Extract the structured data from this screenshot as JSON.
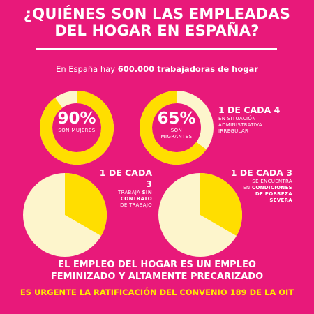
{
  "title": {
    "line1": "¿QUIÉNES SON LAS EMPLEADAS",
    "line2": "DEL HOGAR EN ESPAÑA?"
  },
  "intro": {
    "prefix": "En España hay ",
    "highlight": "600.000 trabajadoras de hogar"
  },
  "stats": [
    {
      "value": "90%",
      "label": "SON MUJERES",
      "fraction": 0.9
    },
    {
      "value": "65%",
      "label_line1": "SON",
      "label_line2": "MIGRANTES",
      "fraction": 0.65
    }
  ],
  "admin": {
    "head": "1 DE CADA 4",
    "line1": "EN SITUACIÓN",
    "line2": "ADMINISTRATIVA",
    "line3": "IRREGULAR",
    "fraction": 0.25
  },
  "contract": {
    "head": "1 DE CADA 3",
    "line1_pre": "TRABAJA ",
    "line1_bold": "SIN",
    "line2_bold": "CONTRATO",
    "line3": "DE TRABAJO",
    "fraction": 0.3333
  },
  "poverty": {
    "head": "1 DE CADA 3",
    "line1": "SE ENCUENTRA",
    "line2_pre": "EN ",
    "line2_bold": "CONDICIONES",
    "line3_bold": "DE POBREZA",
    "line4_bold": "SEVERA",
    "fraction": 0.3333
  },
  "footer": {
    "line1": "EL EMPLEO DEL HOGAR ES UN EMPLEO",
    "line2": "FEMINIZADO Y ALTAMENTE PRECARIZADO",
    "urgent": "ES URGENTE LA RATIFICACIÓN DEL CONVENIO 189 DE LA OIT"
  },
  "colors": {
    "background": "#e8197a",
    "yellow": "#ffde00",
    "cream": "#fdf5cc",
    "urgent": "#ffea00"
  }
}
